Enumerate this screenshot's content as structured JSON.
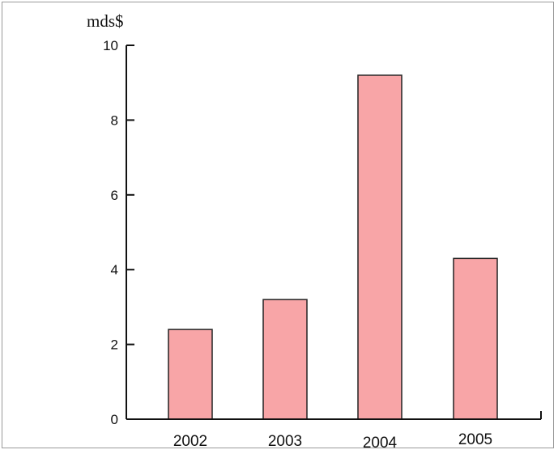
{
  "chart_data": {
    "type": "bar",
    "categories": [
      "2002",
      "2003",
      "2004",
      "2005"
    ],
    "values": [
      2.4,
      3.2,
      9.2,
      4.3
    ],
    "title": "",
    "xlabel": "",
    "ylabel": "mds$",
    "ylim": [
      0,
      10
    ],
    "yticks": [
      "0",
      "2",
      "4",
      "6",
      "8",
      "10"
    ],
    "grid": false,
    "colors": {
      "bar_fill": "#f8a5a7",
      "bar_stroke": "#222222",
      "axis": "#111111"
    }
  }
}
